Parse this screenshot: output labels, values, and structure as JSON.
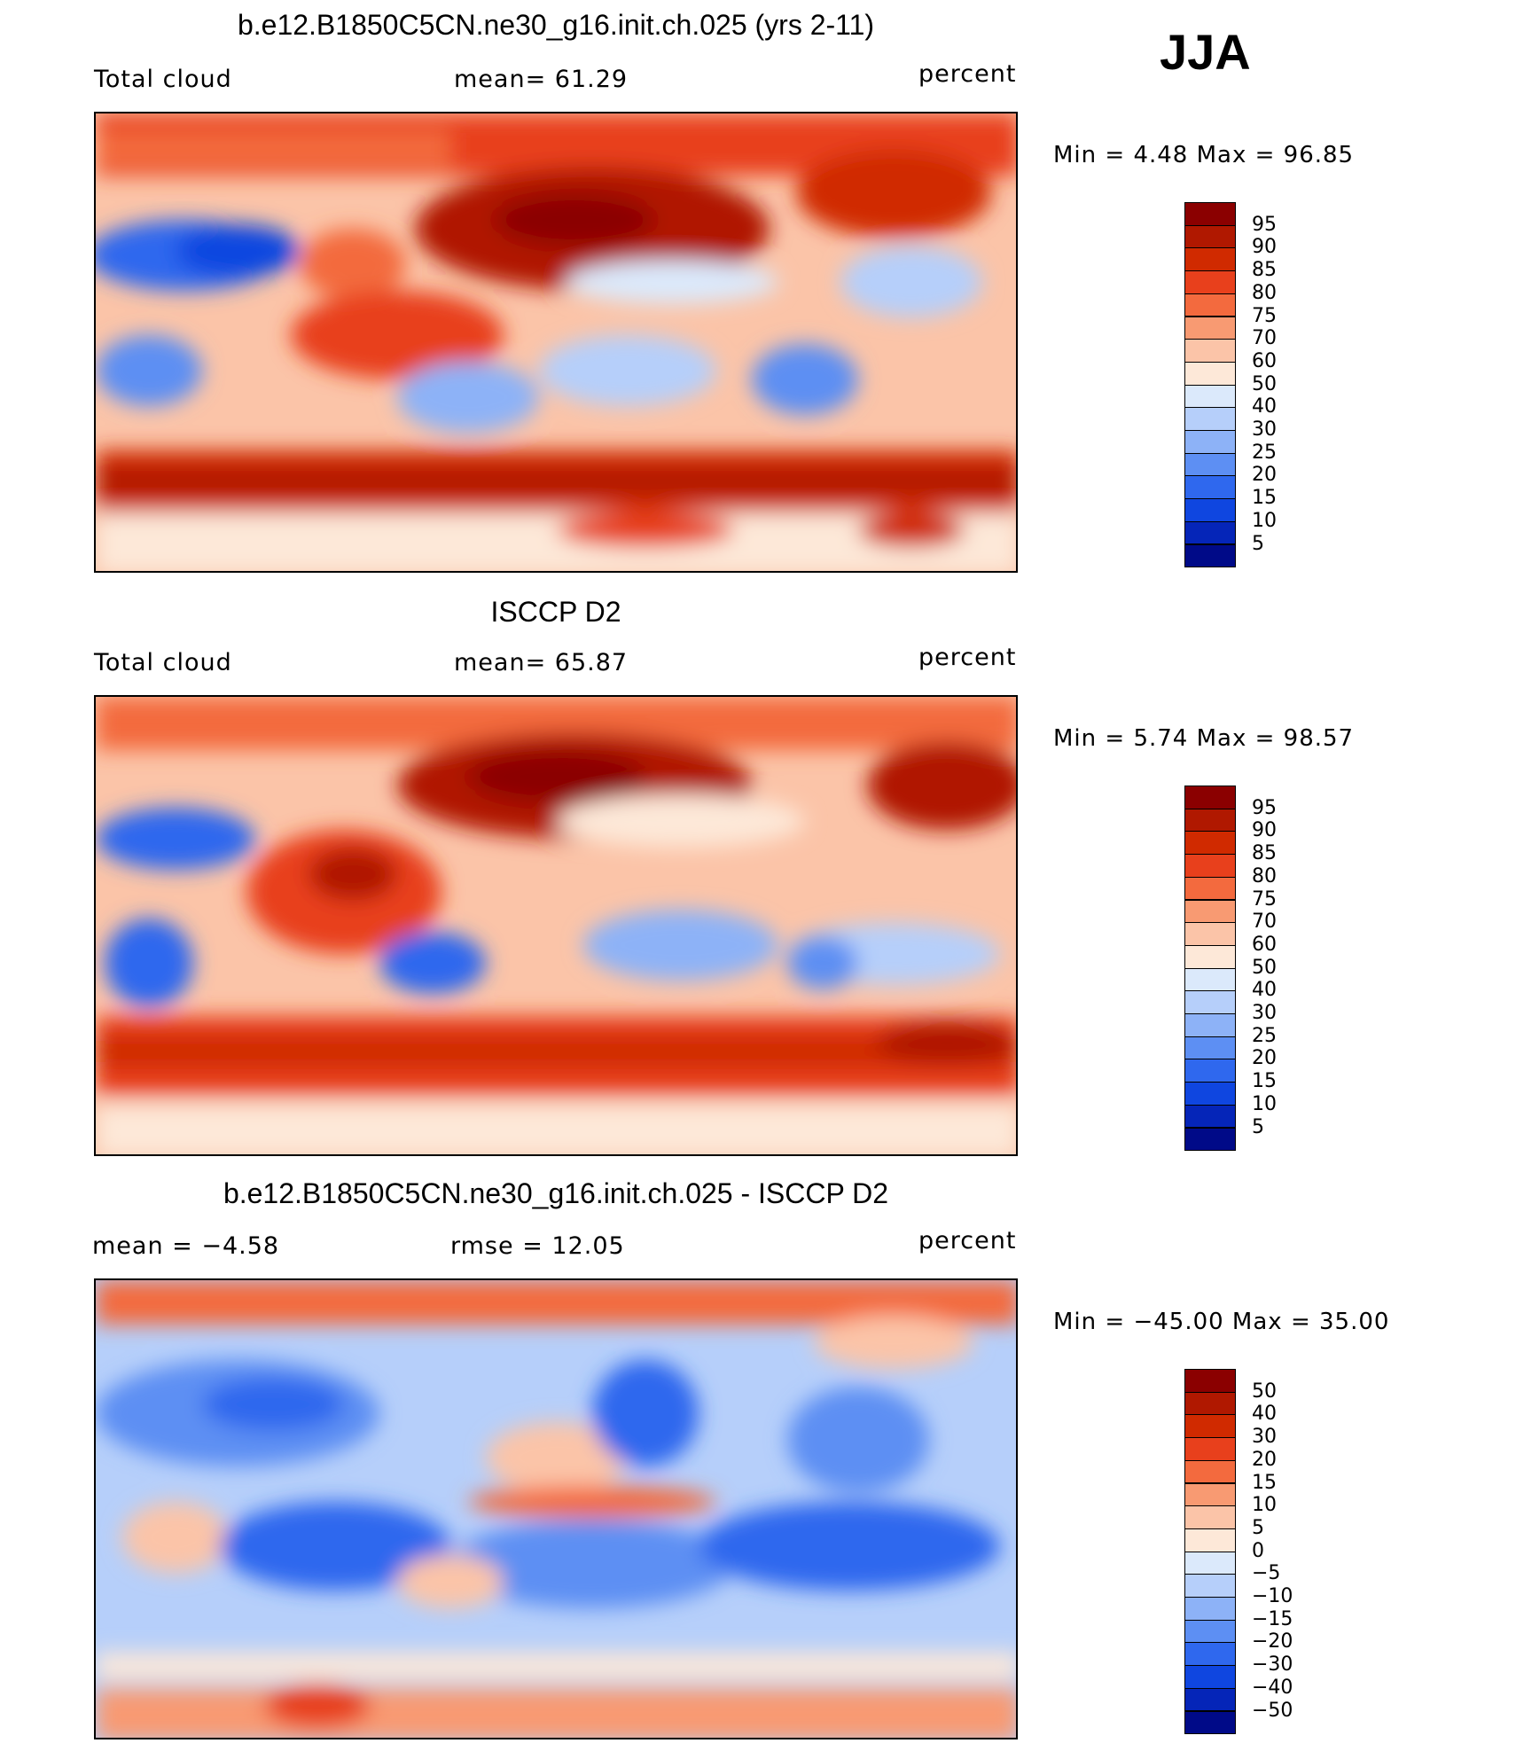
{
  "season": "JJA",
  "panels": [
    {
      "title": "b.e12.B1850C5CN.ne30_g16.init.ch.025 (yrs 2-11)",
      "left_label": "Total cloud",
      "center_label": "mean=   61.29",
      "right_label": "percent",
      "minmax": "Min =    4.48  Max =    96.85",
      "map_name": "model-total-cloud-map",
      "colorbar": {
        "colors": [
          "#8b0000",
          "#b01800",
          "#d02a00",
          "#e8401c",
          "#f36a3e",
          "#f89a72",
          "#fbc4a8",
          "#fde8d8",
          "#dbe9fb",
          "#b6cffa",
          "#8db2f7",
          "#5d8ff3",
          "#2f68ee",
          "#0f46e0",
          "#0525b8",
          "#000a88"
        ],
        "labels": [
          "95",
          "90",
          "85",
          "80",
          "75",
          "70",
          "60",
          "50",
          "40",
          "30",
          "25",
          "20",
          "15",
          "10",
          "5"
        ]
      }
    },
    {
      "title": "ISCCP D2",
      "left_label": "Total cloud",
      "center_label": "mean=   65.87",
      "right_label": "percent",
      "minmax": "Min =    5.74  Max =    98.57",
      "map_name": "isccp-total-cloud-map",
      "colorbar": {
        "colors": [
          "#8b0000",
          "#b01800",
          "#d02a00",
          "#e8401c",
          "#f36a3e",
          "#f89a72",
          "#fbc4a8",
          "#fde8d8",
          "#dbe9fb",
          "#b6cffa",
          "#8db2f7",
          "#5d8ff3",
          "#2f68ee",
          "#0f46e0",
          "#0525b8",
          "#000a88"
        ],
        "labels": [
          "95",
          "90",
          "85",
          "80",
          "75",
          "70",
          "60",
          "50",
          "40",
          "30",
          "25",
          "20",
          "15",
          "10",
          "5"
        ]
      }
    },
    {
      "title": "b.e12.B1850C5CN.ne30_g16.init.ch.025 - ISCCP D2",
      "left_label": "mean =   −4.58",
      "center_label": "rmse =   12.05",
      "right_label": "percent",
      "minmax": "Min = −45.00  Max =   35.00",
      "map_name": "difference-map",
      "colorbar": {
        "colors": [
          "#8b0000",
          "#b01800",
          "#d02a00",
          "#e8401c",
          "#f36a3e",
          "#f89a72",
          "#fbc4a8",
          "#fde8d8",
          "#dbe9fb",
          "#b6cffa",
          "#8db2f7",
          "#5d8ff3",
          "#2f68ee",
          "#0f46e0",
          "#0525b8",
          "#000a88"
        ],
        "labels": [
          "50",
          "40",
          "30",
          "20",
          "15",
          "10",
          "5",
          "0",
          "−5",
          "−10",
          "−15",
          "−20",
          "−30",
          "−40",
          "−50"
        ]
      }
    }
  ]
}
